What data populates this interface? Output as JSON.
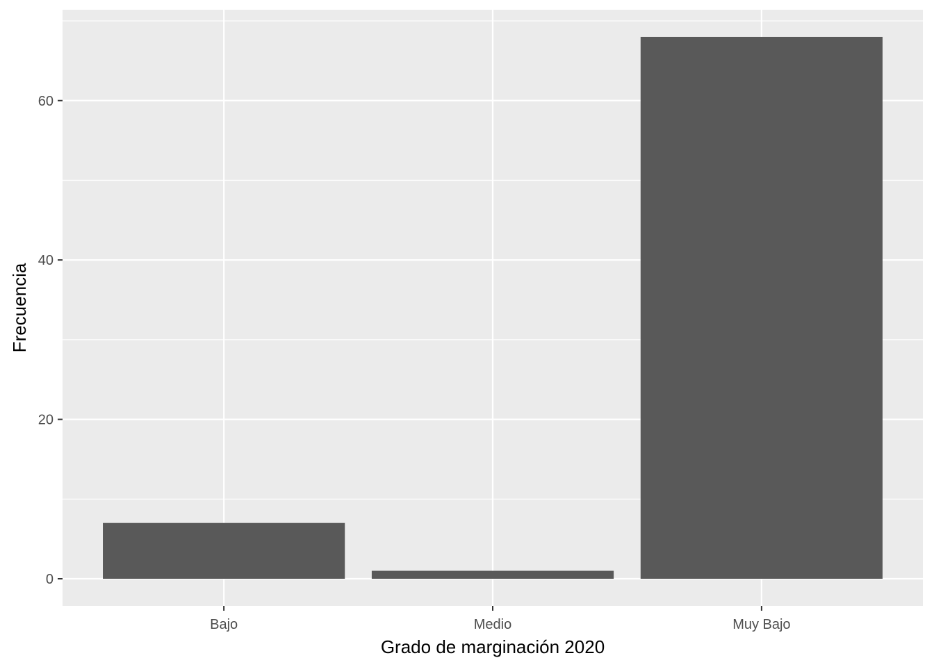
{
  "chart_data": {
    "type": "bar",
    "categories": [
      "Bajo",
      "Medio",
      "Muy Bajo"
    ],
    "values": [
      7,
      1,
      68
    ],
    "title": "",
    "xlabel": "Grado de marginación 2020",
    "ylabel": "Frecuencia",
    "ylim": [
      -3.4,
      71.4
    ],
    "yticks": [
      0,
      20,
      40,
      60
    ],
    "grid": true,
    "legend": "none",
    "colors": {
      "panel": "#ebebeb",
      "grid": "#ffffff",
      "bar": "#595959",
      "tick_text": "#4d4d4d",
      "tick_line": "#333333"
    }
  }
}
